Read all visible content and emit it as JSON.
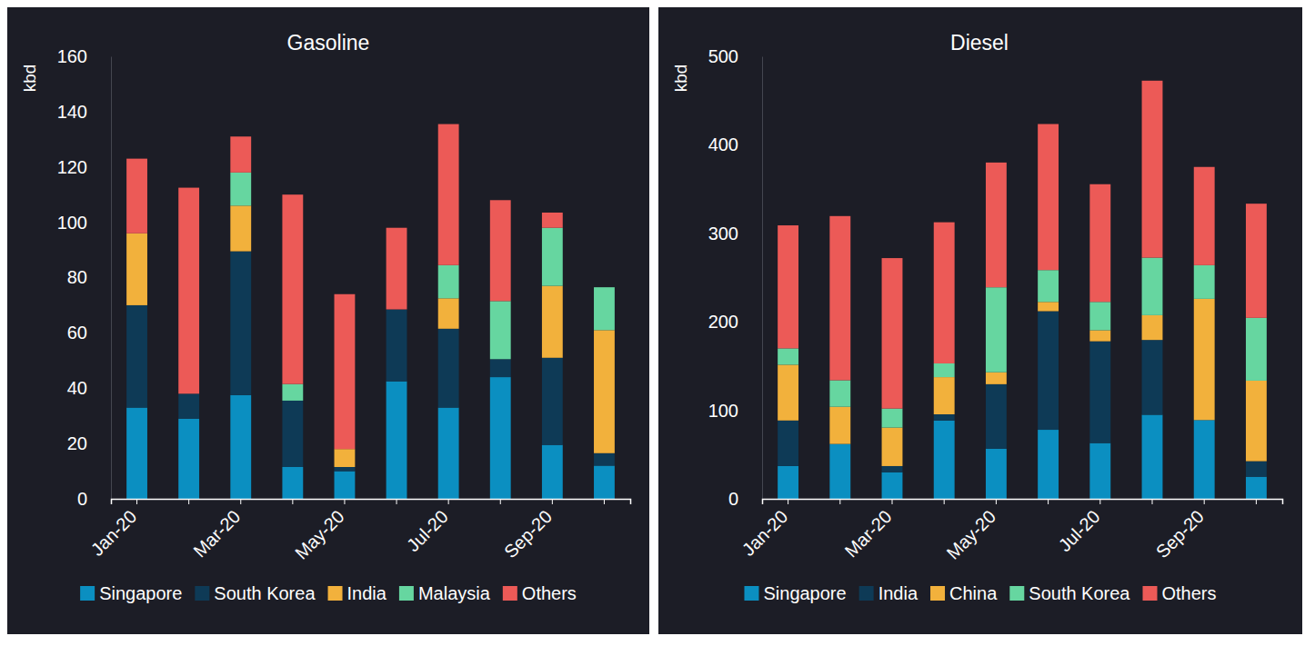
{
  "chart_data": [
    {
      "type": "bar",
      "stacked": true,
      "title": "Gasoline",
      "y_label": "kbd",
      "categories": [
        "Jan-20",
        null,
        "Mar-20",
        null,
        "May-20",
        null,
        "Jul-20",
        null,
        "Sep-20",
        null
      ],
      "series": [
        {
          "name": "Singapore",
          "color": "#0b8fc1",
          "values": [
            33,
            29,
            37.5,
            11.5,
            10,
            42.5,
            33,
            44,
            19.5,
            12
          ]
        },
        {
          "name": "South Korea",
          "color": "#0e3a56",
          "values": [
            37,
            9,
            52,
            24,
            1.5,
            26,
            28.5,
            6.5,
            31.5,
            4.5
          ]
        },
        {
          "name": "India",
          "color": "#f2b13c",
          "values": [
            26,
            0,
            16.5,
            0,
            6.5,
            0,
            11,
            0,
            26,
            44.5
          ]
        },
        {
          "name": "Malaysia",
          "color": "#66d6a0",
          "values": [
            0,
            0,
            12,
            6,
            0,
            0,
            12,
            21,
            21,
            15.5
          ]
        },
        {
          "name": "Others",
          "color": "#ec5a57",
          "values": [
            27,
            74.5,
            13,
            68.5,
            56,
            29.5,
            51,
            36.5,
            5.5,
            0
          ]
        }
      ],
      "ylim": [
        0,
        160
      ],
      "yticks": [
        0,
        20,
        40,
        60,
        80,
        100,
        120,
        140,
        160
      ],
      "grid": false,
      "legend": "bottom"
    },
    {
      "type": "bar",
      "stacked": true,
      "title": "Diesel",
      "y_label": "kbd",
      "categories": [
        "Jan-20",
        null,
        "Mar-20",
        null,
        "May-20",
        null,
        "Jul-20",
        null,
        "Sep-20",
        null
      ],
      "series": [
        {
          "name": "Singapore",
          "color": "#0b8fc1",
          "values": [
            37,
            62,
            30,
            88.5,
            56.5,
            78,
            63,
            95,
            89,
            25
          ]
        },
        {
          "name": "India",
          "color": "#0e3a56",
          "values": [
            51.5,
            0,
            7,
            7,
            73,
            134,
            115,
            84.5,
            0,
            17.5
          ]
        },
        {
          "name": "China",
          "color": "#f2b13c",
          "values": [
            63,
            42,
            43.5,
            42,
            13.5,
            10.5,
            12.5,
            28,
            137,
            91
          ]
        },
        {
          "name": "South Korea",
          "color": "#66d6a0",
          "values": [
            18.5,
            30,
            21.5,
            15.5,
            96,
            36,
            32,
            65,
            38,
            71
          ]
        },
        {
          "name": "Others",
          "color": "#ec5a57",
          "values": [
            139,
            185.5,
            170,
            159.5,
            141,
            165,
            133,
            200,
            111,
            129
          ]
        }
      ],
      "ylim": [
        0,
        500
      ],
      "yticks": [
        0,
        100,
        200,
        300,
        400,
        500
      ],
      "grid": false,
      "legend": "bottom"
    }
  ]
}
